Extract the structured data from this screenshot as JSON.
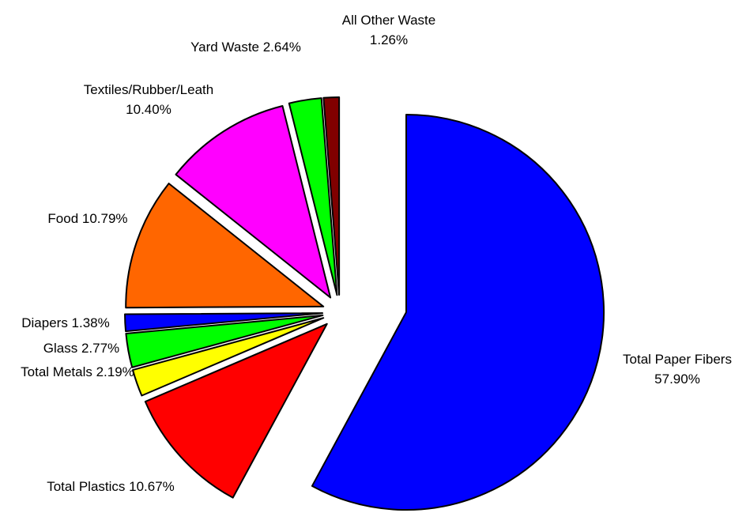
{
  "chart_data": {
    "type": "pie",
    "title": "",
    "exploded": true,
    "start_angle_note": "first slice starts at 12 o'clock, clockwise",
    "slices": [
      {
        "name": "Total Paper Fibers",
        "value": 57.9,
        "label": "57.90%",
        "color": "#0000ff"
      },
      {
        "name": "Total Plastics",
        "value": 10.67,
        "label": "10.67%",
        "color": "#ff0000"
      },
      {
        "name": "Total Metals",
        "value": 2.19,
        "label": "2.19%",
        "color": "#ffff00"
      },
      {
        "name": "Glass",
        "value": 2.77,
        "label": "2.77%",
        "color": "#00ff00"
      },
      {
        "name": "Diapers",
        "value": 1.38,
        "label": "1.38%",
        "color": "#0000ff"
      },
      {
        "name": "Food",
        "value": 10.79,
        "label": "10.79%",
        "color": "#ff6600"
      },
      {
        "name": "Textiles/Rubber/Leath",
        "value": 10.4,
        "label": "10.40%",
        "color": "#ff00ff"
      },
      {
        "name": "Yard Waste",
        "value": 2.64,
        "label": "2.64%",
        "color": "#00ff00"
      },
      {
        "name": "All Other Waste",
        "value": 1.26,
        "label": "1.26%",
        "color": "#800000"
      }
    ]
  }
}
